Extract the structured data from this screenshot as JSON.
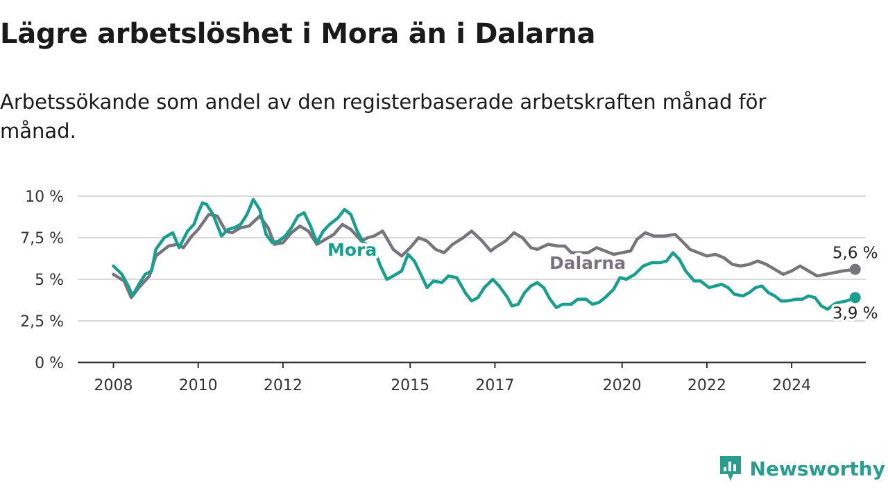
{
  "title": "Lägre arbetslöshet i Mora än i Dalarna",
  "subtitle": "Arbetssökande som andel av den registerbaserade arbetskraften månad för månad.",
  "brand": "Newsworthy",
  "colors": {
    "mora": "#1a9e8f",
    "dalarna": "#77757b",
    "grid": "#d9d9d9",
    "axis": "#333333",
    "brand": "#2a9d8f"
  },
  "chart_data": {
    "type": "line",
    "title": "Lägre arbetslöshet i Mora än i Dalarna",
    "subtitle": "Arbetssökande som andel av den registerbaserade arbetskraften månad för månad.",
    "xlabel": "",
    "ylabel": "",
    "x_range": [
      2008.0,
      2025.75
    ],
    "ylim": [
      0,
      10
    ],
    "y_ticks": [
      0,
      2.5,
      5,
      7.5,
      10
    ],
    "y_tick_labels": [
      "0 %",
      "2,5 %",
      "5 %",
      "7,5 %",
      "10 %"
    ],
    "x_ticks": [
      2008,
      2010,
      2012,
      2015,
      2017,
      2020,
      2022,
      2024
    ],
    "x_tick_labels": [
      "2008",
      "2010",
      "2012",
      "2015",
      "2017",
      "2020",
      "2022",
      "2024"
    ],
    "grid": true,
    "legend": "inline labels",
    "series": [
      {
        "name": "Dalarna",
        "end_label": "5,6 %",
        "points": [
          [
            2008.0,
            5.3
          ],
          [
            2008.25,
            4.9
          ],
          [
            2008.42,
            3.9
          ],
          [
            2008.6,
            4.5
          ],
          [
            2008.85,
            5.2
          ],
          [
            2009.0,
            6.4
          ],
          [
            2009.3,
            7.0
          ],
          [
            2009.5,
            7.1
          ],
          [
            2009.65,
            6.9
          ],
          [
            2009.85,
            7.6
          ],
          [
            2010.0,
            8.0
          ],
          [
            2010.25,
            8.9
          ],
          [
            2010.45,
            8.8
          ],
          [
            2010.65,
            7.9
          ],
          [
            2010.8,
            7.8
          ],
          [
            2011.0,
            8.1
          ],
          [
            2011.2,
            8.2
          ],
          [
            2011.45,
            8.8
          ],
          [
            2011.65,
            8.1
          ],
          [
            2011.8,
            7.1
          ],
          [
            2012.0,
            7.2
          ],
          [
            2012.2,
            7.8
          ],
          [
            2012.4,
            8.2
          ],
          [
            2012.6,
            7.9
          ],
          [
            2012.8,
            7.1
          ],
          [
            2013.0,
            7.4
          ],
          [
            2013.2,
            7.7
          ],
          [
            2013.4,
            8.3
          ],
          [
            2013.6,
            8.0
          ],
          [
            2013.85,
            7.3
          ],
          [
            2014.0,
            7.5
          ],
          [
            2014.15,
            7.6
          ],
          [
            2014.35,
            7.9
          ],
          [
            2014.6,
            6.8
          ],
          [
            2014.8,
            6.4
          ],
          [
            2015.0,
            6.9
          ],
          [
            2015.2,
            7.5
          ],
          [
            2015.4,
            7.3
          ],
          [
            2015.6,
            6.8
          ],
          [
            2015.8,
            6.6
          ],
          [
            2016.0,
            7.1
          ],
          [
            2016.25,
            7.5
          ],
          [
            2016.45,
            7.9
          ],
          [
            2016.7,
            7.3
          ],
          [
            2016.9,
            6.7
          ],
          [
            2017.0,
            6.9
          ],
          [
            2017.25,
            7.3
          ],
          [
            2017.45,
            7.8
          ],
          [
            2017.65,
            7.5
          ],
          [
            2017.85,
            6.9
          ],
          [
            2018.0,
            6.8
          ],
          [
            2018.25,
            7.1
          ],
          [
            2018.5,
            7.0
          ],
          [
            2018.65,
            7.0
          ],
          [
            2018.8,
            6.6
          ],
          [
            2019.2,
            6.6
          ],
          [
            2019.4,
            6.9
          ],
          [
            2019.6,
            6.7
          ],
          [
            2019.8,
            6.5
          ],
          [
            2020.0,
            6.6
          ],
          [
            2020.2,
            6.7
          ],
          [
            2020.35,
            7.4
          ],
          [
            2020.55,
            7.8
          ],
          [
            2020.75,
            7.6
          ],
          [
            2021.0,
            7.6
          ],
          [
            2021.25,
            7.7
          ],
          [
            2021.45,
            7.2
          ],
          [
            2021.6,
            6.8
          ],
          [
            2021.8,
            6.6
          ],
          [
            2022.0,
            6.4
          ],
          [
            2022.2,
            6.5
          ],
          [
            2022.4,
            6.3
          ],
          [
            2022.6,
            5.9
          ],
          [
            2022.8,
            5.8
          ],
          [
            2023.0,
            5.9
          ],
          [
            2023.2,
            6.1
          ],
          [
            2023.4,
            5.9
          ],
          [
            2023.6,
            5.6
          ],
          [
            2023.8,
            5.3
          ],
          [
            2024.0,
            5.5
          ],
          [
            2024.2,
            5.8
          ],
          [
            2024.4,
            5.5
          ],
          [
            2024.6,
            5.2
          ],
          [
            2024.8,
            5.3
          ],
          [
            2025.0,
            5.4
          ],
          [
            2025.2,
            5.5
          ],
          [
            2025.5,
            5.6
          ]
        ]
      },
      {
        "name": "Mora",
        "end_label": "3,9 %",
        "points": [
          [
            2008.0,
            5.8
          ],
          [
            2008.2,
            5.3
          ],
          [
            2008.35,
            4.6
          ],
          [
            2008.45,
            4.0
          ],
          [
            2008.6,
            4.7
          ],
          [
            2008.75,
            5.3
          ],
          [
            2008.9,
            5.5
          ],
          [
            2009.0,
            6.8
          ],
          [
            2009.2,
            7.5
          ],
          [
            2009.4,
            7.8
          ],
          [
            2009.55,
            6.9
          ],
          [
            2009.75,
            7.9
          ],
          [
            2009.9,
            8.3
          ],
          [
            2010.0,
            9.0
          ],
          [
            2010.1,
            9.6
          ],
          [
            2010.2,
            9.5
          ],
          [
            2010.35,
            8.9
          ],
          [
            2010.55,
            7.6
          ],
          [
            2010.7,
            8.0
          ],
          [
            2010.85,
            8.1
          ],
          [
            2011.0,
            8.3
          ],
          [
            2011.15,
            8.9
          ],
          [
            2011.3,
            9.8
          ],
          [
            2011.45,
            9.2
          ],
          [
            2011.6,
            7.7
          ],
          [
            2011.75,
            7.2
          ],
          [
            2011.9,
            7.3
          ],
          [
            2012.05,
            7.6
          ],
          [
            2012.2,
            8.1
          ],
          [
            2012.35,
            8.8
          ],
          [
            2012.5,
            9.0
          ],
          [
            2012.65,
            8.2
          ],
          [
            2012.8,
            7.2
          ],
          [
            2012.95,
            7.9
          ],
          [
            2013.1,
            8.3
          ],
          [
            2013.3,
            8.7
          ],
          [
            2013.45,
            9.2
          ],
          [
            2013.6,
            8.9
          ],
          [
            2013.75,
            7.9
          ],
          [
            2013.9,
            7.2
          ],
          [
            2014.05,
            7.0
          ],
          [
            2014.15,
            6.8
          ],
          [
            2014.3,
            5.8
          ],
          [
            2014.45,
            5.0
          ],
          [
            2014.6,
            5.2
          ],
          [
            2014.8,
            5.5
          ],
          [
            2014.95,
            6.5
          ],
          [
            2015.1,
            6.1
          ],
          [
            2015.25,
            5.3
          ],
          [
            2015.4,
            4.5
          ],
          [
            2015.55,
            4.9
          ],
          [
            2015.75,
            4.8
          ],
          [
            2015.9,
            5.2
          ],
          [
            2016.1,
            5.1
          ],
          [
            2016.3,
            4.2
          ],
          [
            2016.45,
            3.7
          ],
          [
            2016.6,
            3.9
          ],
          [
            2016.75,
            4.5
          ],
          [
            2016.95,
            5.0
          ],
          [
            2017.1,
            4.6
          ],
          [
            2017.3,
            3.9
          ],
          [
            2017.4,
            3.4
          ],
          [
            2017.55,
            3.5
          ],
          [
            2017.7,
            4.2
          ],
          [
            2017.85,
            4.6
          ],
          [
            2018.0,
            4.8
          ],
          [
            2018.15,
            4.5
          ],
          [
            2018.3,
            3.8
          ],
          [
            2018.45,
            3.3
          ],
          [
            2018.6,
            3.5
          ],
          [
            2018.8,
            3.5
          ],
          [
            2018.95,
            3.8
          ],
          [
            2019.15,
            3.8
          ],
          [
            2019.3,
            3.5
          ],
          [
            2019.45,
            3.6
          ],
          [
            2019.6,
            3.9
          ],
          [
            2019.8,
            4.4
          ],
          [
            2019.95,
            5.1
          ],
          [
            2020.1,
            5.0
          ],
          [
            2020.3,
            5.3
          ],
          [
            2020.5,
            5.8
          ],
          [
            2020.7,
            6.0
          ],
          [
            2020.9,
            6.0
          ],
          [
            2021.05,
            6.1
          ],
          [
            2021.2,
            6.6
          ],
          [
            2021.35,
            6.2
          ],
          [
            2021.5,
            5.5
          ],
          [
            2021.7,
            4.9
          ],
          [
            2021.85,
            4.9
          ],
          [
            2022.05,
            4.5
          ],
          [
            2022.2,
            4.6
          ],
          [
            2022.35,
            4.7
          ],
          [
            2022.5,
            4.5
          ],
          [
            2022.65,
            4.1
          ],
          [
            2022.85,
            4.0
          ],
          [
            2023.0,
            4.2
          ],
          [
            2023.15,
            4.5
          ],
          [
            2023.3,
            4.6
          ],
          [
            2023.45,
            4.2
          ],
          [
            2023.6,
            4.0
          ],
          [
            2023.75,
            3.7
          ],
          [
            2023.9,
            3.7
          ],
          [
            2024.1,
            3.8
          ],
          [
            2024.25,
            3.8
          ],
          [
            2024.4,
            4.0
          ],
          [
            2024.55,
            3.9
          ],
          [
            2024.7,
            3.4
          ],
          [
            2024.85,
            3.2
          ],
          [
            2025.0,
            3.5
          ],
          [
            2025.1,
            3.6
          ],
          [
            2025.3,
            3.7
          ],
          [
            2025.5,
            3.9
          ]
        ]
      }
    ]
  }
}
